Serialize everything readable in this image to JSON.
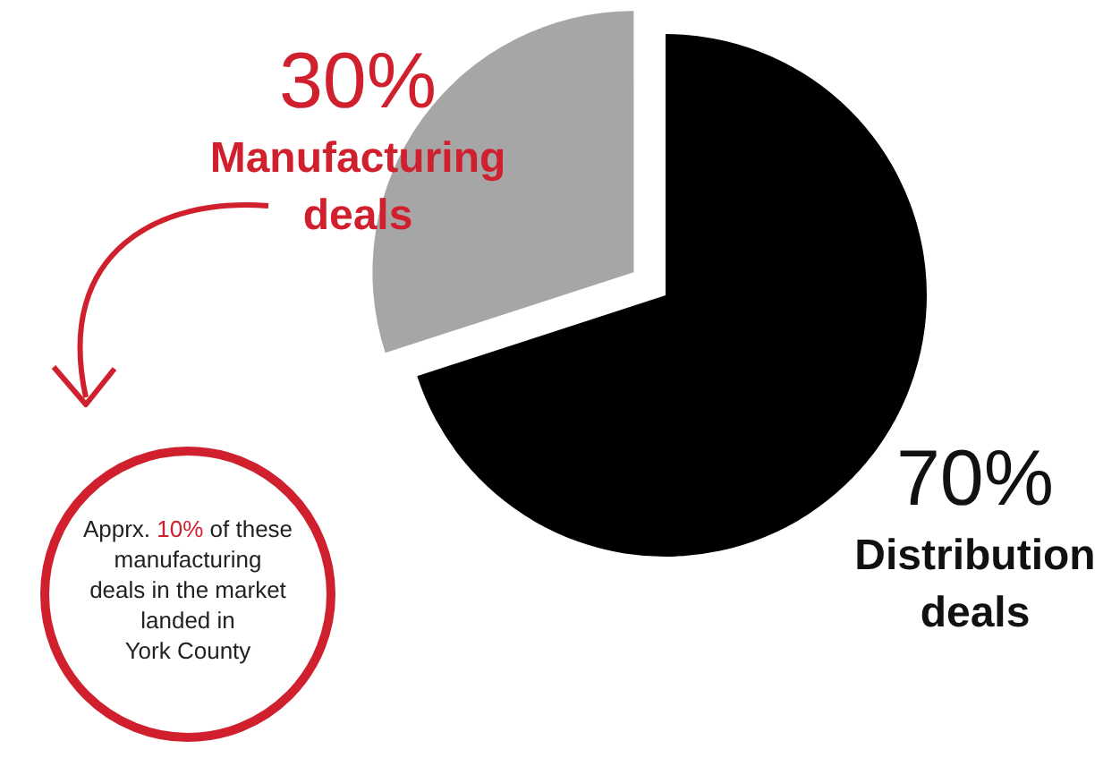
{
  "chart_data": {
    "type": "pie",
    "categories": [
      "Distribution deals",
      "Manufacturing deals"
    ],
    "values": [
      70,
      30
    ],
    "colors": [
      "#000000",
      "#a6a6a6"
    ],
    "value_labels": [
      "70%",
      "30%"
    ],
    "annotations": [
      "Apprx. 10% of these manufacturing deals in the market landed in York County"
    ]
  }
}
